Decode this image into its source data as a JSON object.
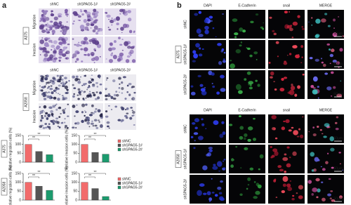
{
  "panel_a": {
    "label": "a",
    "columns": [
      "shNC",
      "shSPAG5-1#",
      "shSPAG5-2#"
    ],
    "groups": [
      {
        "cell_line": "A375",
        "rows": [
          "Migration",
          "Invasion"
        ]
      },
      {
        "cell_line": "A2058",
        "rows": [
          "Migration",
          "Invasion"
        ]
      }
    ]
  },
  "chart_data": [
    {
      "type": "bar",
      "side_label": "A375",
      "y_label": "Relative migration cells (%)",
      "categories": [
        "shNC",
        "shSPAG5-1#",
        "shSPAG5-2#"
      ],
      "values": [
        100,
        60,
        42
      ],
      "colors": [
        "#f26b6b",
        "#555555",
        "#1c9b6e"
      ],
      "ylim": [
        0,
        150
      ],
      "yticks": [
        0,
        50,
        100,
        150
      ],
      "annotations": [
        "**",
        "**"
      ],
      "legend": false
    },
    {
      "type": "bar",
      "y_label": "Relative invasion cells (%)",
      "categories": [
        "shNC",
        "shSPAG5-1#",
        "shSPAG5-2#"
      ],
      "values": [
        100,
        55,
        45
      ],
      "colors": [
        "#f26b6b",
        "#555555",
        "#1c9b6e"
      ],
      "ylim": [
        0,
        150
      ],
      "yticks": [
        0,
        50,
        100,
        150
      ],
      "annotations": [
        "**",
        "**"
      ],
      "legend": true
    },
    {
      "type": "bar",
      "side_label": "A2058",
      "y_label": "Relative migration cells (%)",
      "categories": [
        "shNC",
        "shSPAG5-1#",
        "shSPAG5-2#"
      ],
      "values": [
        100,
        78,
        55
      ],
      "colors": [
        "#f26b6b",
        "#555555",
        "#1c9b6e"
      ],
      "ylim": [
        0,
        150
      ],
      "yticks": [
        0,
        50,
        100,
        150
      ],
      "annotations": [
        "**",
        "**"
      ],
      "legend": false
    },
    {
      "type": "bar",
      "y_label": "Relative invasion cells (%)",
      "categories": [
        "shNC",
        "shSPAG5-1#",
        "shSPAG5-2#"
      ],
      "values": [
        100,
        65,
        20
      ],
      "colors": [
        "#f26b6b",
        "#555555",
        "#1c9b6e"
      ],
      "ylim": [
        0,
        150
      ],
      "yticks": [
        0,
        50,
        100,
        150
      ],
      "annotations": [
        "**",
        "**"
      ],
      "legend": true
    }
  ],
  "panel_b": {
    "label": "b",
    "columns": [
      "DAPI",
      "E-Cadherin",
      "snail",
      "MERGE"
    ],
    "groups": [
      {
        "cell_line": "A375",
        "rows": [
          "shNC",
          "shSPAG5-1#",
          "shSPAG5-2#"
        ]
      },
      {
        "cell_line": "A2058",
        "rows": [
          "shNC",
          "shSPAG5-1#",
          "shSPAG5-2#"
        ]
      }
    ],
    "scale_bar": "50μm"
  }
}
